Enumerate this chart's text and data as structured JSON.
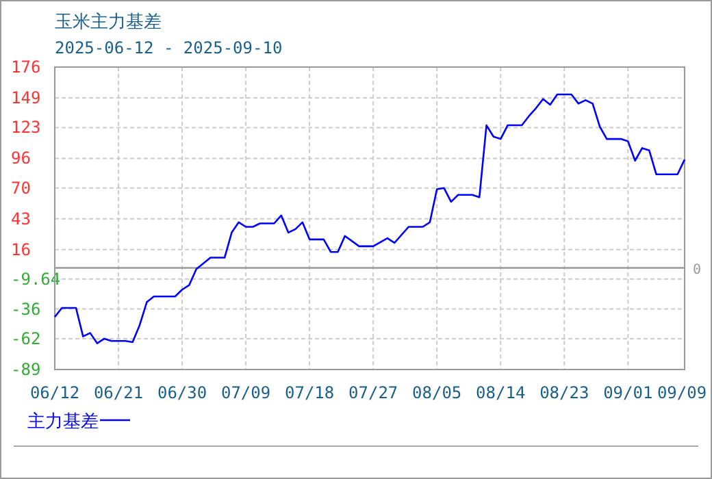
{
  "chart_data": {
    "type": "line",
    "title": "玉米主力基差",
    "subtitle": "2025-06-12 - 2025-09-10",
    "x": [
      "2025-06-12",
      "2025-06-13",
      "2025-06-15",
      "2025-06-16",
      "2025-06-17",
      "2025-06-18",
      "2025-06-19",
      "2025-06-20",
      "2025-06-22",
      "2025-06-23",
      "2025-06-24",
      "2025-06-25",
      "2025-06-26",
      "2025-06-29",
      "2025-06-30",
      "2025-07-01",
      "2025-07-02",
      "2025-07-04",
      "2025-07-06",
      "2025-07-07",
      "2025-07-08",
      "2025-07-09",
      "2025-07-10",
      "2025-07-11",
      "2025-07-13",
      "2025-07-14",
      "2025-07-15",
      "2025-07-16",
      "2025-07-17",
      "2025-07-18",
      "2025-07-20",
      "2025-07-21",
      "2025-07-22",
      "2025-07-23",
      "2025-07-25",
      "2025-07-27",
      "2025-07-29",
      "2025-07-30",
      "2025-08-01",
      "2025-08-03",
      "2025-08-04",
      "2025-08-05",
      "2025-08-06",
      "2025-08-07",
      "2025-08-08",
      "2025-08-10",
      "2025-08-11",
      "2025-08-12",
      "2025-08-13",
      "2025-08-14",
      "2025-08-15",
      "2025-08-17",
      "2025-08-18",
      "2025-08-19",
      "2025-08-20",
      "2025-08-21",
      "2025-08-22",
      "2025-08-24",
      "2025-08-25",
      "2025-08-26",
      "2025-08-27",
      "2025-08-28",
      "2025-08-29",
      "2025-08-31",
      "2025-09-01",
      "2025-09-02",
      "2025-09-03",
      "2025-09-04",
      "2025-09-05",
      "2025-09-08",
      "2025-09-09"
    ],
    "series": [
      {
        "name": "主力基差",
        "color": "#0000ff",
        "values": [
          -43,
          -35,
          -35,
          -60,
          -57,
          -66,
          -62,
          -64,
          -64,
          -65,
          -50,
          -30,
          -25,
          -25,
          -19,
          -15,
          -1,
          9,
          9,
          31,
          40,
          36,
          36,
          39,
          39,
          46,
          31,
          34,
          40,
          25,
          25,
          14,
          14,
          28,
          19,
          19,
          26,
          22,
          36,
          36,
          40,
          69,
          70,
          58,
          64,
          64,
          62,
          125,
          115,
          113,
          125,
          125,
          133,
          140,
          148,
          143,
          152,
          152,
          144,
          147,
          144,
          124,
          113,
          113,
          111,
          94,
          105,
          103,
          82,
          82,
          95
        ]
      }
    ],
    "xlim": [
      "2025-06-12",
      "2025-09-09"
    ],
    "xticks": [
      {
        "value": "2025-06-12",
        "label": "06/12"
      },
      {
        "value": "2025-06-21",
        "label": "06/21"
      },
      {
        "value": "2025-06-30",
        "label": "06/30"
      },
      {
        "value": "2025-07-09",
        "label": "07/09"
      },
      {
        "value": "2025-07-18",
        "label": "07/18"
      },
      {
        "value": "2025-07-27",
        "label": "07/27"
      },
      {
        "value": "2025-08-05",
        "label": "08/05"
      },
      {
        "value": "2025-08-14",
        "label": "08/14"
      },
      {
        "value": "2025-08-23",
        "label": "08/23"
      },
      {
        "value": "2025-09-01",
        "label": "09/01"
      },
      {
        "value": "2025-09-09",
        "label": "09/09"
      }
    ],
    "ylim": [
      -89,
      176
    ],
    "yticks": [
      176,
      149,
      123,
      96,
      70,
      43,
      16,
      -9.64,
      -36,
      -62,
      -89
    ],
    "grid": true,
    "legend": "bottom left",
    "ref_lines": [
      {
        "axis": "y",
        "value": 0,
        "label": "0",
        "color": "#999999"
      }
    ]
  }
}
